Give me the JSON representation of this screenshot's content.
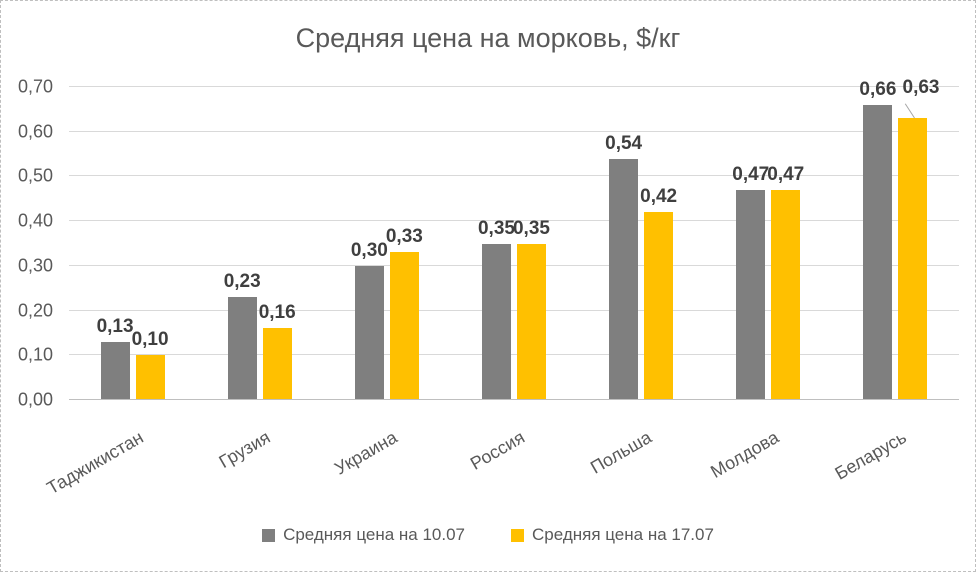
{
  "chart_data": {
    "type": "bar",
    "title": "Средняя цена на морковь, $/кг",
    "categories": [
      "Таджикистан",
      "Грузия",
      "Украина",
      "Россия",
      "Польша",
      "Молдова",
      "Беларусь"
    ],
    "series": [
      {
        "name": "Средняя цена на 10.07",
        "color": "#7F7F7F",
        "values": [
          0.13,
          0.23,
          0.3,
          0.35,
          0.54,
          0.47,
          0.66
        ],
        "labels": [
          "0,13",
          "0,23",
          "0,30",
          "0,35",
          "0,54",
          "0,47",
          "0,66"
        ]
      },
      {
        "name": "Средняя цена на 17.07",
        "color": "#FFC000",
        "values": [
          0.1,
          0.16,
          0.33,
          0.35,
          0.42,
          0.47,
          0.63
        ],
        "labels": [
          "0,10",
          "0,16",
          "0,33",
          "0,35",
          "0,42",
          "0,47",
          "0,63"
        ]
      }
    ],
    "xlabel": "",
    "ylabel": "",
    "ylim": [
      0,
      0.7
    ],
    "ytick_step": 0.1,
    "ytick_labels": [
      "0,00",
      "0,10",
      "0,20",
      "0,30",
      "0,40",
      "0,50",
      "0,60",
      "0,70"
    ],
    "grid": true,
    "legend_position": "bottom",
    "colors": {
      "title_text": "#595959",
      "axis_text": "#595959",
      "data_label_text": "#3F3F3F",
      "gridline": "#D9D9D9",
      "axis_line": "#BFBFBF"
    }
  }
}
